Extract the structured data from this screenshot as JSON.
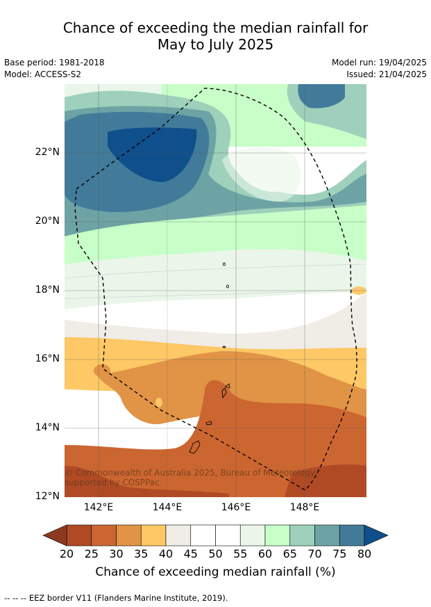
{
  "title_line1": "Chance of exceeding the median rainfall for",
  "title_line2": "May to July 2025",
  "base_period": "Base period: 1981-2018",
  "model": "Model: ACCESS-S2",
  "model_run": "Model run: 19/04/2025",
  "issued": "Issued: 21/04/2025",
  "lat_labels": [
    "22°N",
    "20°N",
    "18°N",
    "16°N",
    "14°N",
    "12°N"
  ],
  "lon_labels": [
    "142°E",
    "144°E",
    "146°E",
    "148°E"
  ],
  "copyright": "© Commonwealth of Australia 2025, Bureau of Meteorology, supported by COSPPac",
  "colorbar": {
    "ticks": [
      "20",
      "25",
      "30",
      "35",
      "40",
      "45",
      "50",
      "55",
      "60",
      "65",
      "70",
      "75",
      "80"
    ],
    "colors": [
      "#b04a25",
      "#cc6631",
      "#e19346",
      "#fdc865",
      "#f0ece6",
      "#ffffff",
      "#ffffff",
      "#e9f6e9",
      "#c8fec8",
      "#9ed0bb",
      "#6ea3a5",
      "#427b99"
    ],
    "under_color": "#8b3a20",
    "over_color": "#0f4f8c",
    "label": "Chance of exceeding median rainfall (%)"
  },
  "legend_note": "--  --  -- EEZ border V11 (Flanders Marine Institute, 2019)."
}
